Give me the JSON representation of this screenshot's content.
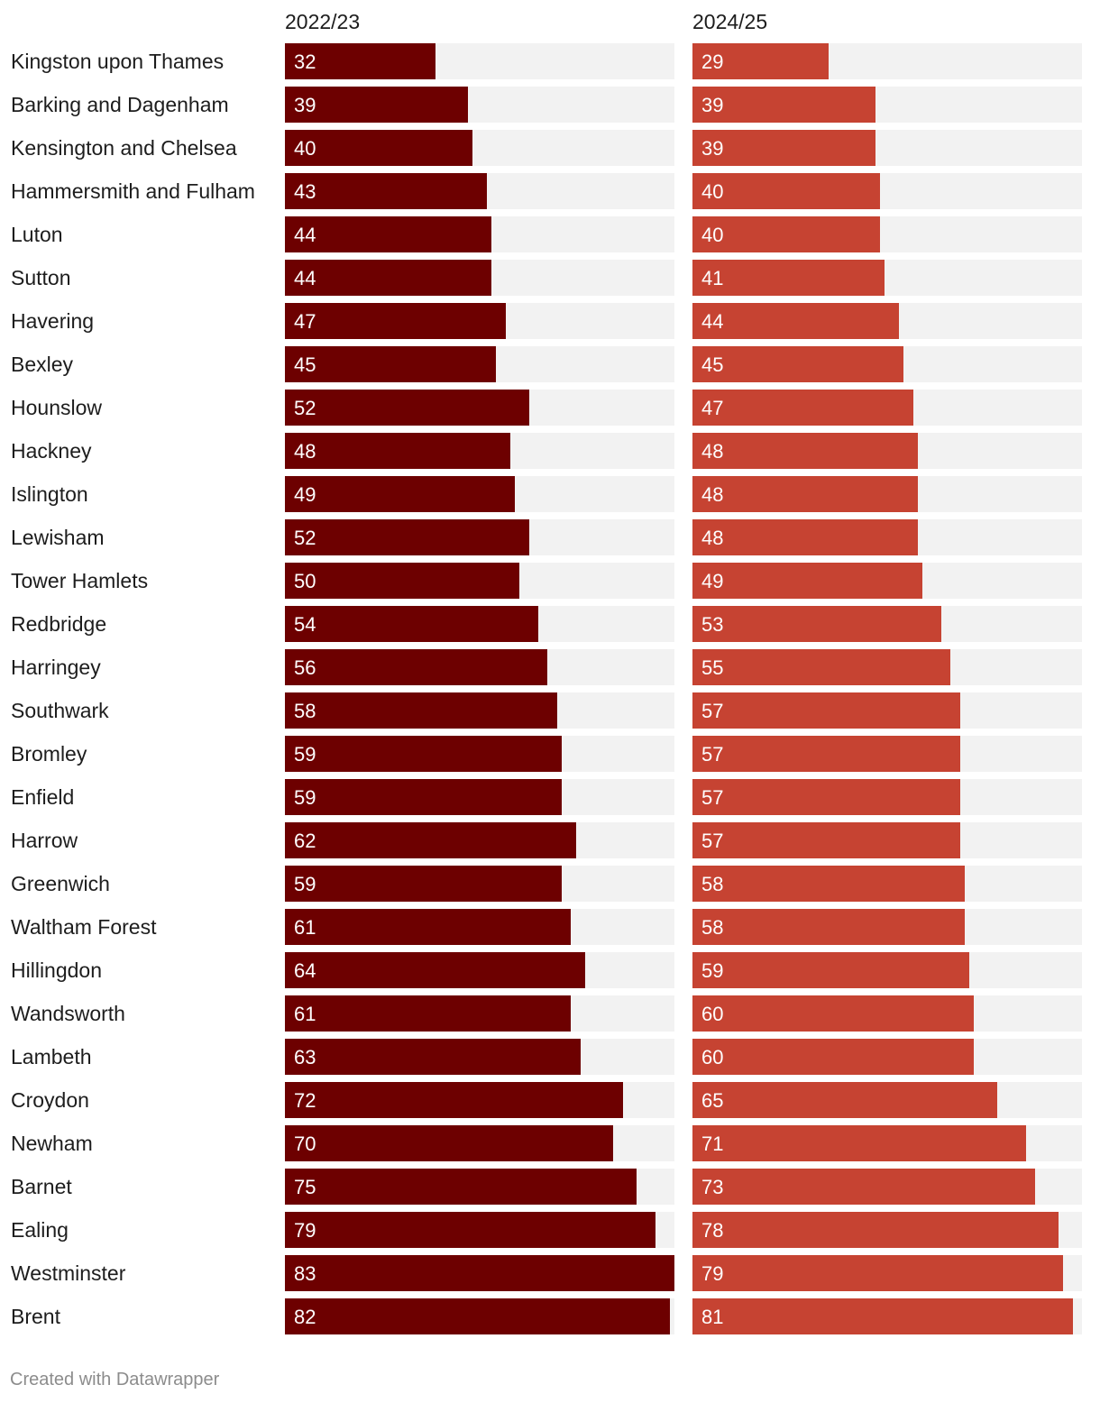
{
  "chart_data": {
    "type": "bar",
    "orientation": "horizontal",
    "layout": "split-bars",
    "xlim": [
      0,
      83
    ],
    "categories": [
      "Kingston upon Thames",
      "Barking and Dagenham",
      "Kensington and Chelsea",
      "Hammersmith and Fulham",
      "Luton",
      "Sutton",
      "Havering",
      "Bexley",
      "Hounslow",
      "Hackney",
      "Islington",
      "Lewisham",
      "Tower Hamlets",
      "Redbridge",
      "Harringey",
      "Southwark",
      "Bromley",
      "Enfield",
      "Harrow",
      "Greenwich",
      "Waltham Forest",
      "Hillingdon",
      "Wandsworth",
      "Lambeth",
      "Croydon",
      "Newham",
      "Barnet",
      "Ealing",
      "Westminster",
      "Brent"
    ],
    "series": [
      {
        "name": "2022/23",
        "color": "#6d0000",
        "values": [
          32,
          39,
          40,
          43,
          44,
          44,
          47,
          45,
          52,
          48,
          49,
          52,
          50,
          54,
          56,
          58,
          59,
          59,
          62,
          59,
          61,
          64,
          61,
          63,
          72,
          70,
          75,
          79,
          83,
          82
        ]
      },
      {
        "name": "2024/25",
        "color": "#c64332",
        "values": [
          29,
          39,
          39,
          40,
          40,
          41,
          44,
          45,
          47,
          48,
          48,
          48,
          49,
          53,
          55,
          57,
          57,
          57,
          57,
          58,
          58,
          59,
          60,
          60,
          65,
          71,
          73,
          78,
          79,
          81
        ]
      }
    ],
    "track_color": "#f2f2f2"
  },
  "footer": {
    "credit": "Created with Datawrapper"
  }
}
